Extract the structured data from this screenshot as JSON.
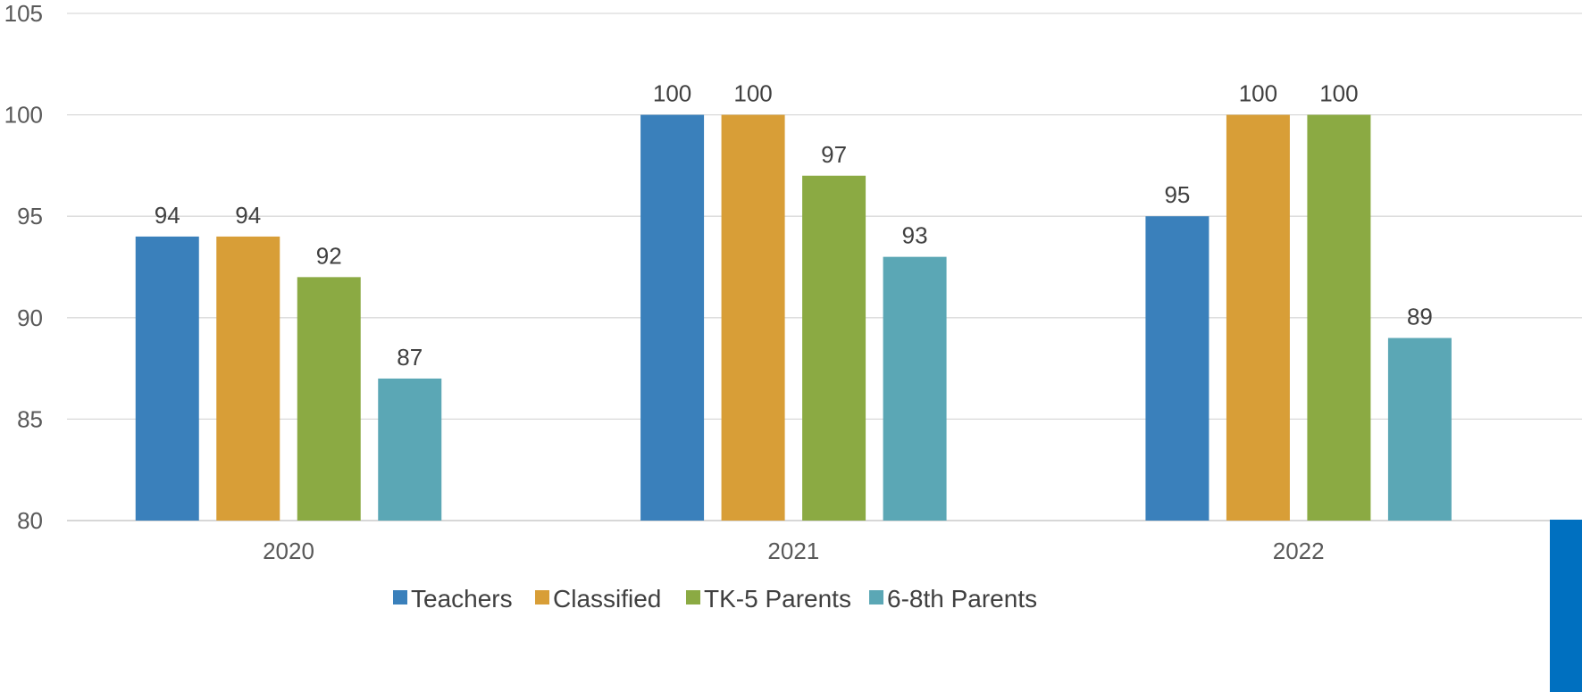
{
  "chart_data": {
    "type": "bar",
    "title": "",
    "xlabel": "",
    "ylabel": "",
    "categories": [
      "2020",
      "2021",
      "2022"
    ],
    "series": [
      {
        "name": "Teachers",
        "color": "#3a80bb",
        "values": [
          94,
          100,
          95
        ]
      },
      {
        "name": "Classified",
        "color": "#d89e37",
        "values": [
          94,
          100,
          100
        ]
      },
      {
        "name": "TK-5 Parents",
        "color": "#8baa43",
        "values": [
          92,
          97,
          100
        ]
      },
      {
        "name": "6-8th Parents",
        "color": "#5ba7b5",
        "values": [
          87,
          93,
          89
        ]
      }
    ],
    "ylim": [
      80,
      105
    ],
    "yticks": [
      80,
      85,
      90,
      95,
      100,
      105
    ],
    "grid": true,
    "legend_position": "bottom",
    "data_labels": true
  },
  "decoration": {
    "corner_panel_color": "#0070c0"
  }
}
